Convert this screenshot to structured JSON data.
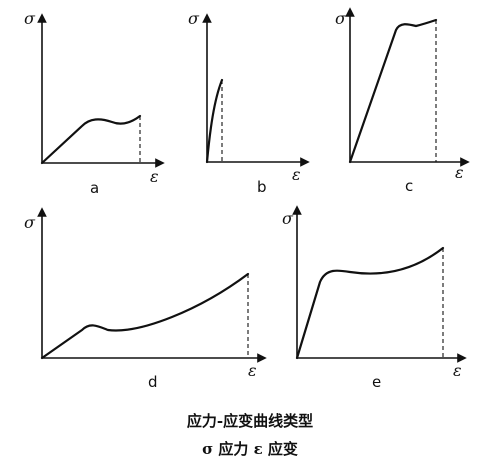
{
  "panels": [
    {
      "id": "a",
      "label": "a",
      "y_axis": "σ",
      "x_axis": "ε"
    },
    {
      "id": "b",
      "label": "b",
      "y_axis": "σ",
      "x_axis": "ε"
    },
    {
      "id": "c",
      "label": "c",
      "y_axis": "σ",
      "x_axis": "ε"
    },
    {
      "id": "d",
      "label": "d",
      "y_axis": "σ",
      "x_axis": "ε"
    },
    {
      "id": "e",
      "label": "e",
      "y_axis": "σ",
      "x_axis": "ε"
    }
  ],
  "caption": {
    "line1": "应力-应变曲线类型",
    "line2": "σ 应力  ε 应变"
  }
}
